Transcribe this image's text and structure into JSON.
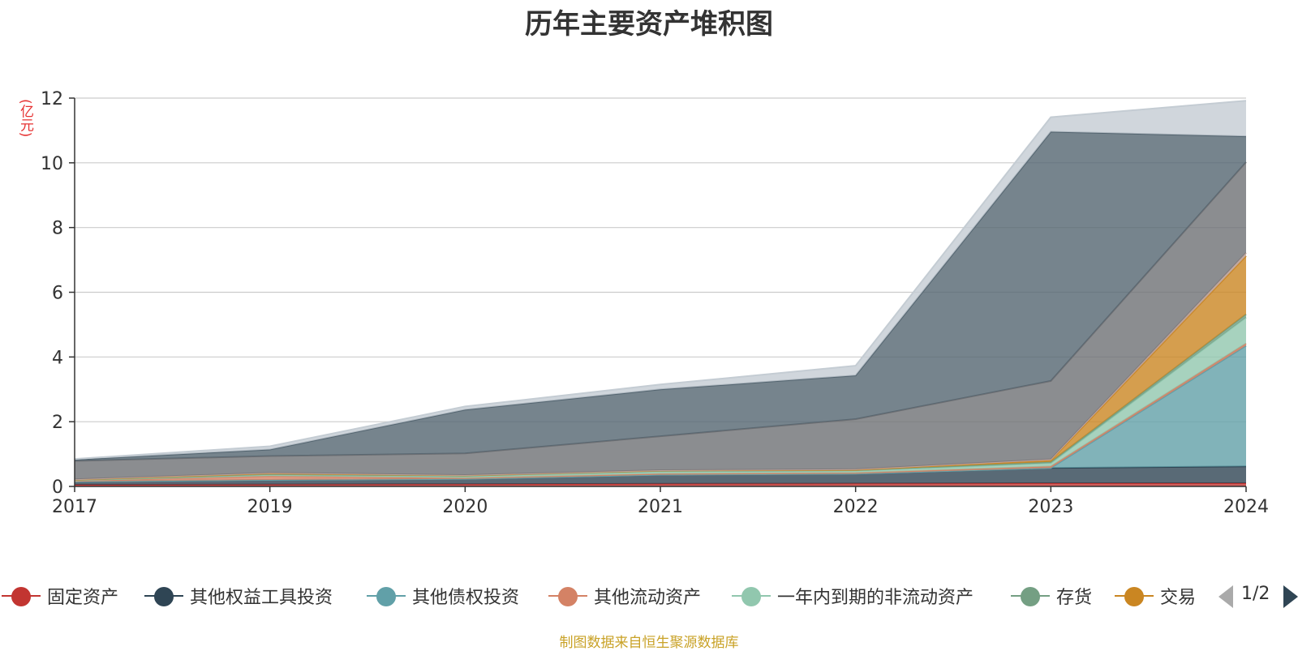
{
  "title": "历年主要资产堆积图",
  "unit_label": "(亿元)",
  "source": "制图数据来自恒生聚源数据库",
  "pager": {
    "text": "1/2"
  },
  "chart_data": {
    "type": "area",
    "stacked": true,
    "title": "历年主要资产堆积图",
    "ylabel": "(亿元)",
    "x": [
      "2017",
      "2019",
      "2020",
      "2021",
      "2022",
      "2023",
      "2024"
    ],
    "ylim": [
      0,
      12
    ],
    "yticks": [
      0,
      2,
      4,
      6,
      8,
      10,
      12
    ],
    "grid": true,
    "legend_position": "bottom",
    "series": [
      {
        "name": "固定资产",
        "color": "#c23531",
        "legend": true,
        "values": [
          0.05,
          0.06,
          0.07,
          0.08,
          0.09,
          0.1,
          0.1
        ]
      },
      {
        "name": "其他权益工具投资",
        "color": "#2f4554",
        "legend": true,
        "values": [
          0.1,
          0.14,
          0.16,
          0.28,
          0.3,
          0.47,
          0.52
        ]
      },
      {
        "name": "其他债权投资",
        "color": "#61a0a8",
        "legend": true,
        "values": [
          0,
          0,
          0,
          0,
          0,
          0,
          3.73
        ]
      },
      {
        "name": "其他流动资产",
        "color": "#d48265",
        "legend": true,
        "values": [
          0.02,
          0.12,
          0.03,
          0.03,
          0.03,
          0.05,
          0.07
        ]
      },
      {
        "name": "一年内到期的非流动资产",
        "color": "#91c7ae",
        "legend": true,
        "values": [
          0.02,
          0.04,
          0.05,
          0.07,
          0.06,
          0.1,
          0.8
        ]
      },
      {
        "name": "存货",
        "color": "#749f83",
        "legend": true,
        "values": [
          0.01,
          0.02,
          0.02,
          0.02,
          0.02,
          0.04,
          0.1
        ]
      },
      {
        "name": "交易",
        "color": "#ca8622",
        "legend": true,
        "values": [
          0.01,
          0.02,
          0.01,
          0.01,
          0.01,
          0.05,
          1.8
        ]
      },
      {
        "name": "",
        "color": "#bda29a",
        "legend": false,
        "values": [
          0.01,
          0.02,
          0.01,
          0.01,
          0.02,
          0.03,
          0.1
        ]
      },
      {
        "name": "",
        "color": "#6e7074",
        "legend": false,
        "values": [
          0.57,
          0.52,
          0.67,
          1.05,
          1.55,
          2.42,
          2.8
        ]
      },
      {
        "name": "",
        "color": "#546570",
        "legend": false,
        "values": [
          0.04,
          0.2,
          1.35,
          1.45,
          1.35,
          7.7,
          0.8
        ]
      },
      {
        "name": "",
        "color": "#c4ccd3",
        "legend": false,
        "values": [
          0.02,
          0.1,
          0.1,
          0.15,
          0.3,
          0.45,
          1.1
        ]
      }
    ]
  }
}
